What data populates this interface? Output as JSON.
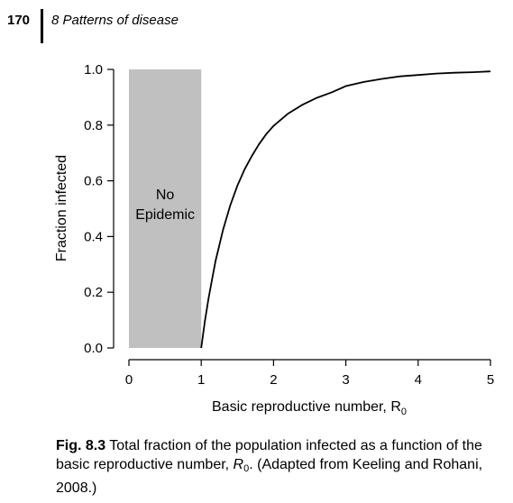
{
  "header": {
    "page_number": "170",
    "chapter_title": "8 Patterns of disease"
  },
  "chart_data": {
    "type": "line",
    "xlabel": "Basic reproductive number, R",
    "xlabel_subscript": "0",
    "ylabel": "Fraction infected",
    "xlim": [
      0,
      5
    ],
    "ylim": [
      0,
      1
    ],
    "x_ticks": [
      0,
      1,
      2,
      3,
      4,
      5
    ],
    "x_tick_labels": [
      "0",
      "1",
      "2",
      "3",
      "4",
      "5"
    ],
    "y_ticks": [
      0,
      0.2,
      0.4,
      0.6,
      0.8,
      1.0
    ],
    "y_tick_labels": [
      "0.0",
      "0.2",
      "0.4",
      "0.6",
      "0.8",
      "1.0"
    ],
    "grid": false,
    "shaded_region": {
      "x_range": [
        0,
        1
      ],
      "label_line1": "No",
      "label_line2": "Epidemic",
      "color": "#c0c0c0"
    },
    "series": [
      {
        "x": [
          1.0,
          1.05,
          1.1,
          1.15,
          1.2,
          1.3,
          1.4,
          1.5,
          1.6,
          1.7,
          1.8,
          1.9,
          2.0,
          2.2,
          2.4,
          2.6,
          2.8,
          3.0,
          3.25,
          3.5,
          3.75,
          4.0,
          4.25,
          4.5,
          4.75,
          5.0
        ],
        "y": [
          0.0,
          0.095,
          0.176,
          0.246,
          0.314,
          0.423,
          0.511,
          0.583,
          0.641,
          0.689,
          0.732,
          0.768,
          0.797,
          0.841,
          0.873,
          0.898,
          0.917,
          0.94,
          0.955,
          0.966,
          0.975,
          0.98,
          0.985,
          0.988,
          0.99,
          0.993
        ],
        "color": "#000000"
      }
    ]
  },
  "caption": {
    "fig_label": "Fig. 8.3",
    "text_part1": " Total fraction of the population infected as a function of the basic reproductive number, ",
    "r_symbol": "R",
    "r_subscript": "0",
    "text_part2": ". (Adapted from Keeling and Rohani, 2008.)"
  }
}
